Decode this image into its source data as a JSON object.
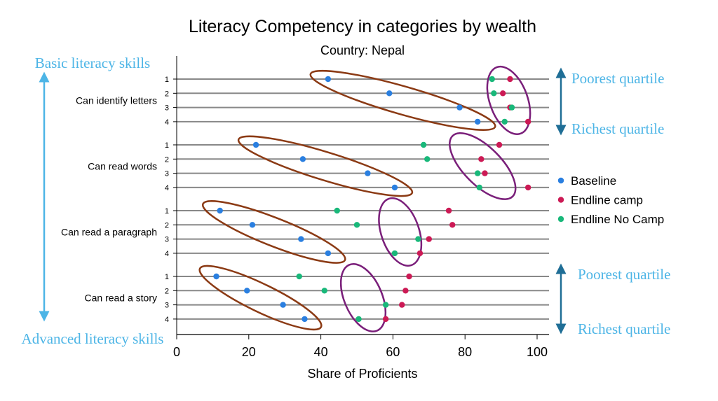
{
  "chart_data": {
    "type": "scatter",
    "title": "Literacy Competency in categories by wealth",
    "subtitle": "Country: Nepal",
    "xlabel": "Share of Proficients",
    "ylabel": "",
    "xlim": [
      0,
      103
    ],
    "x_ticks": [
      "0",
      "20",
      "40",
      "60",
      "80",
      "100"
    ],
    "legend_position": "right",
    "categories": [
      {
        "label": "Can identify letters",
        "quartiles": [
          "1",
          "2",
          "3",
          "4"
        ]
      },
      {
        "label": "Can read words",
        "quartiles": [
          "1",
          "2",
          "3",
          "4"
        ]
      },
      {
        "label": "Can read a paragraph",
        "quartiles": [
          "1",
          "2",
          "3",
          "4"
        ]
      },
      {
        "label": "Can read a story",
        "quartiles": [
          "1",
          "2",
          "3",
          "4"
        ]
      }
    ],
    "series": [
      {
        "name": "Baseline",
        "color": "#2a7fe0",
        "values": [
          [
            42,
            59,
            78.5,
            83.5
          ],
          [
            22,
            35,
            53,
            60.5
          ],
          [
            12,
            21,
            34.5,
            42
          ],
          [
            11,
            19.5,
            29.5,
            35.5
          ]
        ]
      },
      {
        "name": "Endline camp",
        "color": "#cc1a55",
        "values": [
          [
            92.5,
            90.5,
            92.5,
            97.5
          ],
          [
            89.5,
            84.5,
            85.5,
            97.5
          ],
          [
            75.5,
            76.5,
            70,
            67.5
          ],
          [
            64.5,
            63.5,
            62.5,
            58
          ]
        ]
      },
      {
        "name": "Endline No Camp",
        "color": "#19b87a",
        "values": [
          [
            87.5,
            88,
            93,
            91
          ],
          [
            68.5,
            69.5,
            83.5,
            84
          ],
          [
            44.5,
            50,
            67,
            60.5
          ],
          [
            34,
            41,
            58,
            50.5
          ]
        ]
      }
    ],
    "annotations": {
      "top_left": "Basic literacy skills",
      "bottom_left": "Advanced literacy skills",
      "poorest": "Poorest quartile",
      "richest": "Richest quartile"
    },
    "colors": {
      "annotation": "#4db5e6",
      "arrow_blue": "#1f6e96",
      "ellipse_brown": "#8b3a14",
      "ellipse_purple": "#7a1f7a",
      "gridline": "#888888"
    }
  }
}
